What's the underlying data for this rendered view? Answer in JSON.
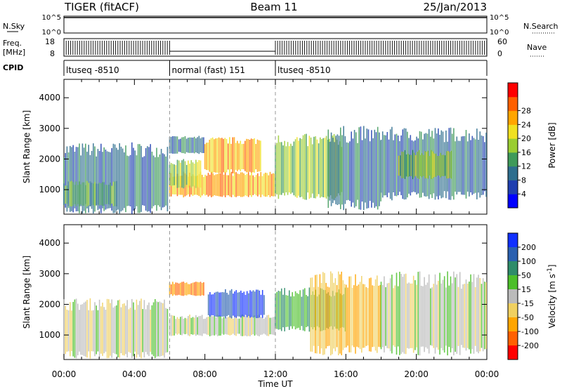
{
  "header": {
    "title": "TIGER (fitACF)",
    "beam": "Beam 11",
    "date": "25/Jan/2013"
  },
  "strips": {
    "nsky_label": "N.Sky",
    "nsearch_label": "N.Search",
    "freq_label": "Freq.",
    "freq_unit": "[MHz]",
    "nave_label": "Nave",
    "cpid_label": "CPID",
    "n_ticks_left": [
      "10^5",
      "10^0"
    ],
    "n_ticks_right": [
      "10^5",
      "10^0"
    ],
    "freq_ticks": [
      "18",
      "8"
    ],
    "nave_ticks": [
      "60",
      "0"
    ],
    "cpid_segments": [
      {
        "label": "ltuseq -8510",
        "start": 0,
        "end": 6
      },
      {
        "label": "normal (fast) 151",
        "start": 6,
        "end": 12
      },
      {
        "label": "ltuseq -8510",
        "start": 12,
        "end": 24
      }
    ]
  },
  "chart_data": [
    {
      "type": "heatmap",
      "quantity": "power",
      "ylabel": "Slant Range [km]",
      "colorbar_label": "Power [dB]",
      "colorbar_ticks": [
        4,
        8,
        12,
        16,
        20,
        24,
        28
      ],
      "colorbar_colors": [
        "#0000ff",
        "#1f3fb0",
        "#2e6e8e",
        "#3f9a5a",
        "#9acd32",
        "#f0e020",
        "#ffa500",
        "#ff6000",
        "#ff0000"
      ],
      "yticks": [
        1000,
        2000,
        3000,
        4000
      ],
      "ylim": [
        200,
        4600
      ],
      "xlim": [
        0,
        24
      ],
      "regions": [
        {
          "t0": 0.0,
          "t1": 5.9,
          "r0": 350,
          "r1": 2300,
          "level": 8
        },
        {
          "t0": 0.0,
          "t1": 3.0,
          "r0": 500,
          "r1": 1200,
          "level": 12
        },
        {
          "t0": 6.0,
          "t1": 12.0,
          "r0": 800,
          "r1": 1500,
          "level": 24
        },
        {
          "t0": 8.0,
          "t1": 11.2,
          "r0": 1600,
          "r1": 2600,
          "level": 24
        },
        {
          "t0": 6.0,
          "t1": 7.8,
          "r0": 1100,
          "r1": 1900,
          "level": 16
        },
        {
          "t0": 6.0,
          "t1": 8.0,
          "r0": 2200,
          "r1": 2700,
          "level": 8
        },
        {
          "t0": 12.0,
          "t1": 15.8,
          "r0": 800,
          "r1": 2600,
          "level": 16
        },
        {
          "t0": 15.0,
          "t1": 18.0,
          "r0": 500,
          "r1": 2800,
          "level": 8
        },
        {
          "t0": 18.0,
          "t1": 24.0,
          "r0": 800,
          "r1": 2800,
          "level": 8
        },
        {
          "t0": 19.0,
          "t1": 22.0,
          "r0": 1400,
          "r1": 2200,
          "level": 16
        }
      ]
    },
    {
      "type": "heatmap",
      "quantity": "velocity",
      "ylabel": "Slant Range [km]",
      "colorbar_label": "Velocity [m s^-1]",
      "colorbar_ticks": [
        200,
        100,
        50,
        15,
        -15,
        -50,
        -100,
        -200
      ],
      "colorbar_colors": [
        "#1030ff",
        "#2a60b0",
        "#2e8c6a",
        "#4cbf2a",
        "#bbbbbb",
        "#f0d060",
        "#ffa500",
        "#ff6000",
        "#ff0000"
      ],
      "yticks": [
        1000,
        2000,
        3000,
        4000
      ],
      "ylim": [
        200,
        4600
      ],
      "xlim": [
        0,
        24
      ],
      "xticks": [
        "00:00",
        "04:00",
        "08:00",
        "12:00",
        "16:00",
        "20:00",
        "00:00"
      ],
      "xlabel": "Time UT",
      "regions": [
        {
          "t0": 0.0,
          "t1": 5.9,
          "r0": 350,
          "r1": 2000,
          "level": 0
        },
        {
          "t0": 6.0,
          "t1": 12.0,
          "r0": 1000,
          "r1": 1600,
          "level": 0
        },
        {
          "t0": 8.2,
          "t1": 11.4,
          "r0": 1600,
          "r1": 2400,
          "level": 200
        },
        {
          "t0": 6.0,
          "t1": 8.0,
          "r0": 2300,
          "r1": 2700,
          "level": -100
        },
        {
          "t0": 12.0,
          "t1": 16.0,
          "r0": 1200,
          "r1": 2400,
          "level": 50
        },
        {
          "t0": 14.0,
          "t1": 18.0,
          "r0": 500,
          "r1": 2800,
          "level": -50
        },
        {
          "t0": 18.0,
          "t1": 24.0,
          "r0": 500,
          "r1": 2800,
          "level": 0
        }
      ]
    }
  ]
}
